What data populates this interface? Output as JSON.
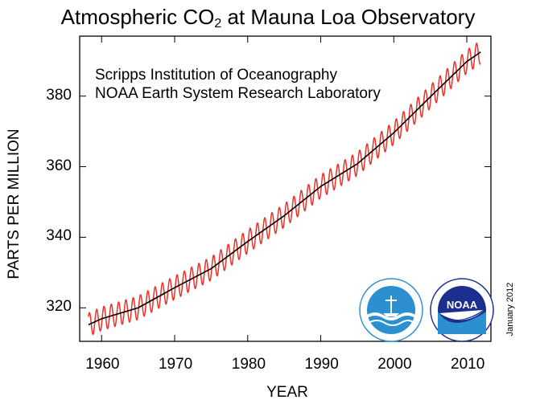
{
  "title": {
    "main": "Atmospheric CO",
    "sub": "2",
    "rest": " at Mauna Loa Observatory"
  },
  "credits": [
    "Scripps Institution of Oceanography",
    "NOAA Earth System Research Laboratory"
  ],
  "date_note": "January 2012",
  "logos": {
    "sio": "sio-seal-logo",
    "noaa": "noaa-logo"
  },
  "colors": {
    "monthly": "#e8322a",
    "trend": "#000000",
    "sio_blue": "#2b8fd0",
    "noaa_navy": "#1c2f8f"
  },
  "chart_data": {
    "type": "line",
    "title": "Atmospheric CO2 at Mauna Loa Observatory",
    "xlabel": "YEAR",
    "ylabel": "PARTS PER MILLION",
    "xlim": [
      1957,
      2013.3
    ],
    "ylim": [
      310.5,
      397
    ],
    "x_ticks": [
      1960,
      1970,
      1980,
      1990,
      2000,
      2010
    ],
    "y_ticks": [
      320,
      340,
      360,
      380
    ],
    "grid": false,
    "series": [
      {
        "role": "monthly",
        "color": "#e8322a",
        "x": [
          1958.2,
          1960,
          1965,
          1970,
          1975,
          1980,
          1985,
          1990,
          1995,
          2000,
          2005,
          2010,
          2011.9
        ],
        "y": [
          315.2,
          316.9,
          320.0,
          325.7,
          331.1,
          338.8,
          346.1,
          354.4,
          360.8,
          369.6,
          379.8,
          389.8,
          392.5
        ],
        "seasonal_amplitude_ppm": 3.3
      },
      {
        "role": "trend",
        "color": "#000000",
        "x": [
          1958.2,
          1960,
          1965,
          1970,
          1975,
          1980,
          1985,
          1990,
          1995,
          2000,
          2005,
          2010,
          2011.9
        ],
        "y": [
          315.2,
          316.9,
          320.0,
          325.7,
          331.1,
          338.8,
          346.1,
          354.4,
          360.8,
          369.6,
          379.8,
          389.8,
          392.5
        ]
      }
    ]
  }
}
